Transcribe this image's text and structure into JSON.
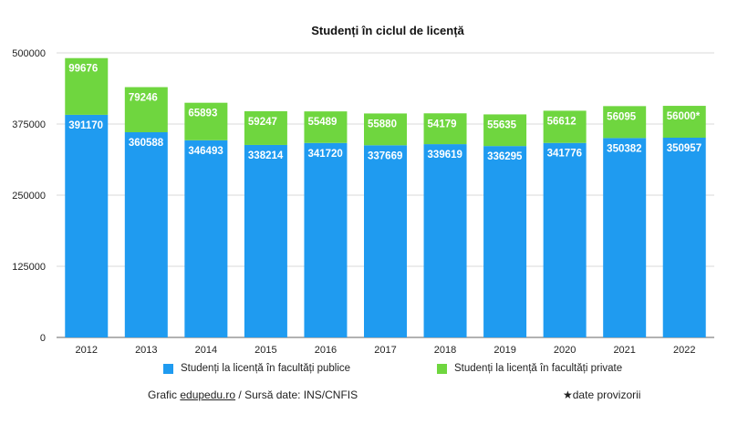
{
  "chart_data": {
    "type": "bar",
    "stacked": true,
    "title": "Studenți în ciclul de licență",
    "categories": [
      "2012",
      "2013",
      "2014",
      "2015",
      "2016",
      "2017",
      "2018",
      "2019",
      "2020",
      "2021",
      "2022"
    ],
    "series": [
      {
        "name": "Studenți la licență în facultăți publice",
        "color": "#1f9bf0",
        "values": [
          391170,
          360588,
          346493,
          338214,
          341720,
          337669,
          339619,
          336295,
          341776,
          350382,
          350957
        ],
        "labels": [
          "391170",
          "360588",
          "346493",
          "338214",
          "341720",
          "337669",
          "339619",
          "336295",
          "341776",
          "350382",
          "350957"
        ]
      },
      {
        "name": "Studenți la licență în facultăți private",
        "color": "#6fd63f",
        "values": [
          99676,
          79246,
          65893,
          59247,
          55489,
          55880,
          54179,
          55635,
          56612,
          56095,
          56000
        ],
        "labels": [
          "99676",
          "79246",
          "65893",
          "59247",
          "55489",
          "55880",
          "54179",
          "55635",
          "56612",
          "56095",
          "56000*"
        ]
      }
    ],
    "ylim": [
      0,
      500000
    ],
    "yticks": [
      "0",
      "125000",
      "250000",
      "375000",
      "500000"
    ],
    "grid": true,
    "legend_position": "bottom"
  },
  "footer": {
    "source_prefix": "Grafic ",
    "source_site": "edupedu.ro",
    "source_suffix": " / Sursă date: INS/CNFIS",
    "note": "★date provizorii"
  }
}
